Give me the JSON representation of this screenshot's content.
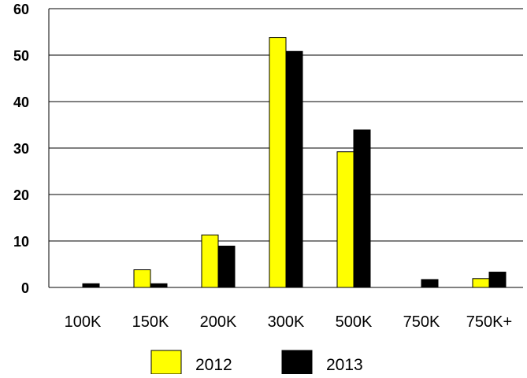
{
  "chart_data": {
    "type": "bar",
    "title": "",
    "xlabel": "",
    "ylabel": "",
    "categories": [
      "100K",
      "150K",
      "200K",
      "300K",
      "500K",
      "750K",
      "750K+"
    ],
    "series": [
      {
        "name": "2012",
        "color": "#FFFF00",
        "values": [
          0,
          3.8,
          11.3,
          53.8,
          29.2,
          0,
          1.9
        ]
      },
      {
        "name": "2013",
        "color": "#000000",
        "values": [
          0.8,
          0.8,
          8.9,
          50.8,
          33.9,
          1.7,
          3.3
        ]
      }
    ],
    "ylim": [
      0,
      60
    ],
    "yticks": [
      0,
      10,
      20,
      30,
      40,
      50,
      60
    ],
    "grid": true,
    "legend": "bottom"
  }
}
